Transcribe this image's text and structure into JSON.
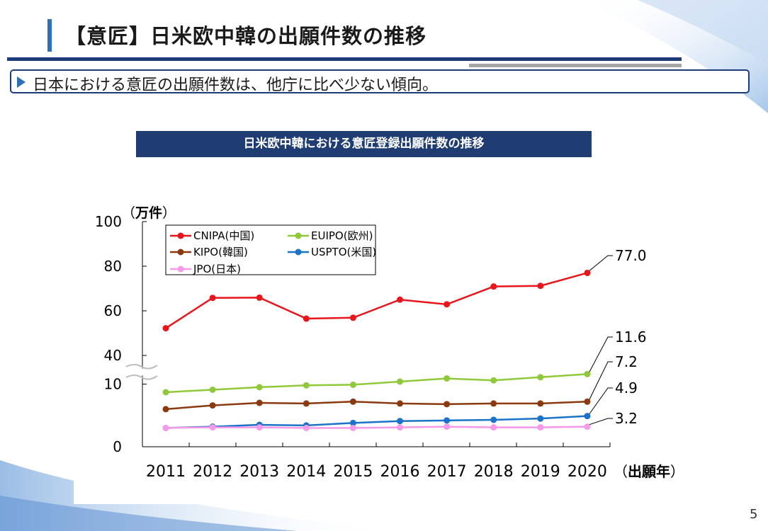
{
  "page": {
    "title": "【意匠】日米欧中韓の出願件数の推移",
    "summary": "日本における意匠の出願件数は、他庁に比べ少ない傾向。",
    "page_number": "5"
  },
  "colors": {
    "title_accent": "#2f6fb8",
    "rule": "#1f3c7a",
    "chart_title_bg": "#1f3d73",
    "cnipa": "#e8161c",
    "euipo": "#8fc93a",
    "kipo": "#8b3a0f",
    "uspto": "#1a73c8",
    "jpo": "#f49ae8"
  },
  "chart_data": {
    "type": "line",
    "title": "日米欧中韓における意匠登録出願件数の推移",
    "unit_label": "（万件）",
    "xlabel": "（出願年）",
    "x": [
      "2011",
      "2012",
      "2013",
      "2014",
      "2015",
      "2016",
      "2017",
      "2018",
      "2019",
      "2020"
    ],
    "y_ticks": [
      "100",
      "80",
      "60",
      "40",
      "10",
      "0"
    ],
    "axis_break": "between 10 and 40",
    "legend_position": "top-left",
    "grid": false,
    "series": [
      {
        "name": "CNIPA(中国)",
        "color": "#e8161c",
        "values": [
          52.2,
          65.8,
          65.9,
          56.5,
          56.9,
          65.0,
          62.9,
          70.9,
          71.2,
          77.0
        ],
        "end_label": "77.0"
      },
      {
        "name": "EUIPO(欧州)",
        "color": "#8fc93a",
        "values": [
          8.7,
          9.1,
          9.5,
          9.8,
          9.9,
          10.4,
          10.9,
          10.6,
          11.1,
          11.6
        ],
        "end_label": "11.6"
      },
      {
        "name": "KIPO(韓国)",
        "color": "#8b3a0f",
        "values": [
          6.0,
          6.6,
          7.0,
          6.9,
          7.2,
          6.9,
          6.8,
          6.9,
          6.9,
          7.2
        ],
        "end_label": "7.2"
      },
      {
        "name": "USPTO(米国)",
        "color": "#1a73c8",
        "values": [
          3.0,
          3.2,
          3.5,
          3.4,
          3.8,
          4.1,
          4.2,
          4.3,
          4.5,
          4.9
        ],
        "end_label": "4.9"
      },
      {
        "name": "JPO(日本)",
        "color": "#f49ae8",
        "values": [
          3.0,
          3.1,
          3.1,
          3.0,
          3.0,
          3.1,
          3.2,
          3.1,
          3.1,
          3.2
        ],
        "end_label": "3.2"
      }
    ]
  }
}
